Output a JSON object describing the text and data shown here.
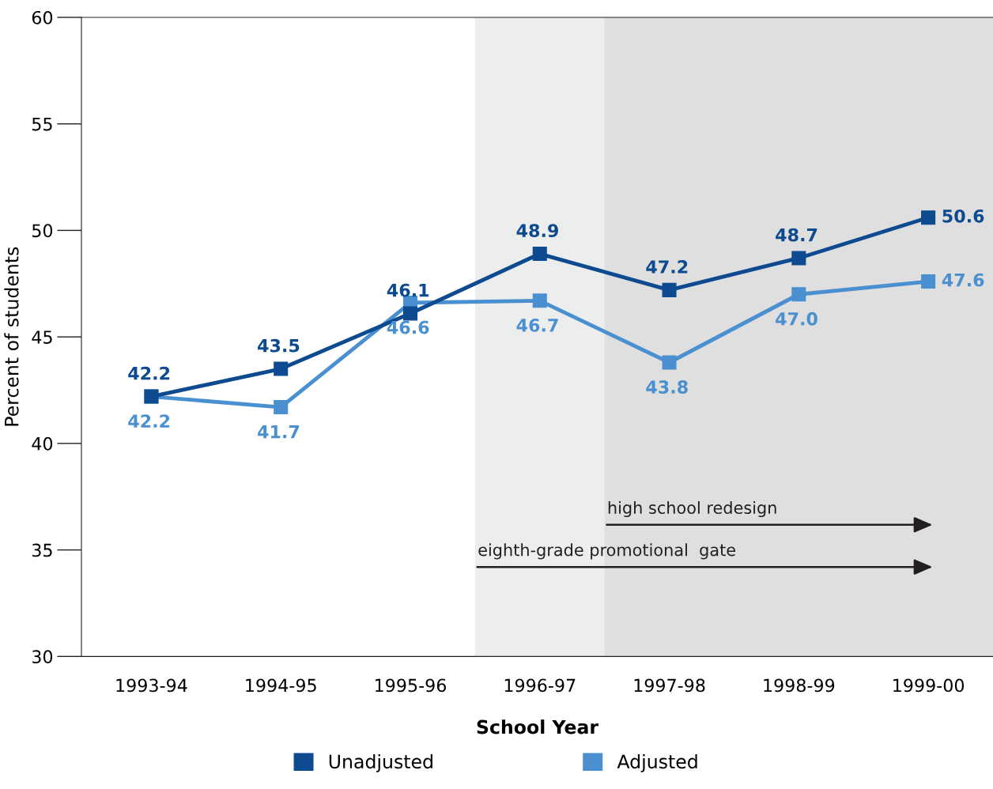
{
  "chart_data": {
    "type": "line",
    "xlabel": "School Year",
    "ylabel": "Percent of students",
    "categories": [
      "1993-94",
      "1994-95",
      "1995-96",
      "1996-97",
      "1997-98",
      "1998-99",
      "1999-00"
    ],
    "series": [
      {
        "name": "Unadjusted",
        "color": "#0d4a8f",
        "values": [
          42.2,
          43.5,
          46.1,
          48.9,
          47.2,
          48.7,
          50.6
        ]
      },
      {
        "name": "Adjusted",
        "color": "#4a90d0",
        "values": [
          42.2,
          41.7,
          46.6,
          46.7,
          43.8,
          47.0,
          47.6
        ],
        "value_labels": [
          "42.2",
          "41.7",
          "46.6",
          "46.7",
          "43.8",
          "47.0",
          "47.6"
        ]
      }
    ],
    "ylim": [
      30,
      60
    ],
    "yticks": [
      30,
      35,
      40,
      45,
      50,
      55,
      60
    ],
    "bands": [
      {
        "axis": "x",
        "from": "1996-97",
        "to": "1999-00",
        "label": "eighth-grade promotional  gate",
        "color": "#eceeed"
      },
      {
        "axis": "x",
        "from": "1997-98",
        "to": "1999-00",
        "label": "high school redesign",
        "color": "#dfdfdf"
      }
    ],
    "data_labels": true,
    "marker": "square",
    "line_style": "solid",
    "grid": false,
    "legend": "bottom"
  }
}
